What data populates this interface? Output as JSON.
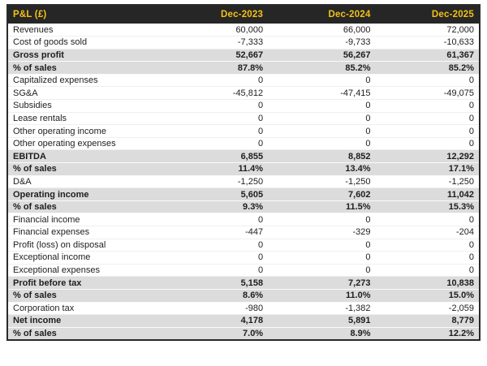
{
  "colors": {
    "header_bg": "#262626",
    "header_text": "#F3C117",
    "emphasis_row_bg": "#DCDCDC",
    "body_text": "#1E1E1E",
    "table_border": "#2A2A2A"
  },
  "chart_data": {
    "type": "table",
    "title": "P&L (£)",
    "columns": [
      "Dec-2023",
      "Dec-2024",
      "Dec-2025"
    ],
    "rows": [
      {
        "label": "Revenues",
        "values": [
          "60,000",
          "66,000",
          "72,000"
        ],
        "emphasis": false
      },
      {
        "label": "Cost of goods sold",
        "values": [
          "-7,333",
          "-9,733",
          "-10,633"
        ],
        "emphasis": false
      },
      {
        "label": "Gross profit",
        "values": [
          "52,667",
          "56,267",
          "61,367"
        ],
        "emphasis": true
      },
      {
        "label": "% of sales",
        "values": [
          "87.8%",
          "85.2%",
          "85.2%"
        ],
        "emphasis": true
      },
      {
        "label": "Capitalized expenses",
        "values": [
          "0",
          "0",
          "0"
        ],
        "emphasis": false
      },
      {
        "label": "SG&A",
        "values": [
          "-45,812",
          "-47,415",
          "-49,075"
        ],
        "emphasis": false
      },
      {
        "label": "Subsidies",
        "values": [
          "0",
          "0",
          "0"
        ],
        "emphasis": false
      },
      {
        "label": "Lease rentals",
        "values": [
          "0",
          "0",
          "0"
        ],
        "emphasis": false
      },
      {
        "label": "Other operating income",
        "values": [
          "0",
          "0",
          "0"
        ],
        "emphasis": false
      },
      {
        "label": "Other operating expenses",
        "values": [
          "0",
          "0",
          "0"
        ],
        "emphasis": false
      },
      {
        "label": "EBITDA",
        "values": [
          "6,855",
          "8,852",
          "12,292"
        ],
        "emphasis": true
      },
      {
        "label": "% of sales",
        "values": [
          "11.4%",
          "13.4%",
          "17.1%"
        ],
        "emphasis": true
      },
      {
        "label": "D&A",
        "values": [
          "-1,250",
          "-1,250",
          "-1,250"
        ],
        "emphasis": false
      },
      {
        "label": "Operating income",
        "values": [
          "5,605",
          "7,602",
          "11,042"
        ],
        "emphasis": true
      },
      {
        "label": "% of sales",
        "values": [
          "9.3%",
          "11.5%",
          "15.3%"
        ],
        "emphasis": true
      },
      {
        "label": "Financial income",
        "values": [
          "0",
          "0",
          "0"
        ],
        "emphasis": false
      },
      {
        "label": "Financial expenses",
        "values": [
          "-447",
          "-329",
          "-204"
        ],
        "emphasis": false
      },
      {
        "label": "Profit (loss) on disposal",
        "values": [
          "0",
          "0",
          "0"
        ],
        "emphasis": false
      },
      {
        "label": "Exceptional income",
        "values": [
          "0",
          "0",
          "0"
        ],
        "emphasis": false
      },
      {
        "label": "Exceptional expenses",
        "values": [
          "0",
          "0",
          "0"
        ],
        "emphasis": false
      },
      {
        "label": "Profit before tax",
        "values": [
          "5,158",
          "7,273",
          "10,838"
        ],
        "emphasis": true
      },
      {
        "label": "% of sales",
        "values": [
          "8.6%",
          "11.0%",
          "15.0%"
        ],
        "emphasis": true
      },
      {
        "label": "Corporation tax",
        "values": [
          "-980",
          "-1,382",
          "-2,059"
        ],
        "emphasis": false
      },
      {
        "label": "Net income",
        "values": [
          "4,178",
          "5,891",
          "8,779"
        ],
        "emphasis": true
      },
      {
        "label": "% of sales",
        "values": [
          "7.0%",
          "8.9%",
          "12.2%"
        ],
        "emphasis": true
      }
    ]
  }
}
